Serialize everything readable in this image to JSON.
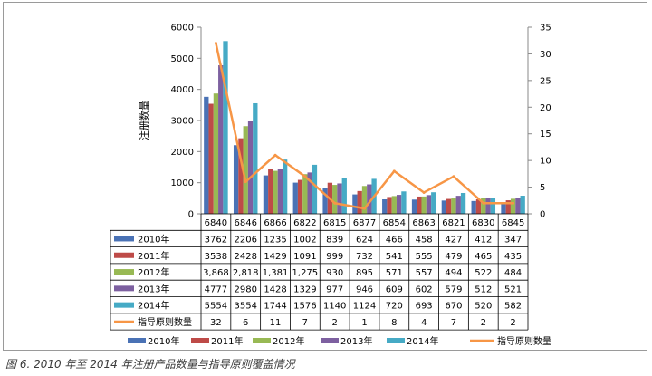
{
  "chart_data": {
    "type": "bar",
    "categories": [
      "6840",
      "6846",
      "6866",
      "6822",
      "6815",
      "6877",
      "6854",
      "6863",
      "6821",
      "6830",
      "6845"
    ],
    "series": [
      {
        "name": "2010年",
        "color": "#4a72b5",
        "values": [
          3762,
          2206,
          1235,
          1002,
          839,
          624,
          466,
          458,
          427,
          412,
          347
        ],
        "labels": [
          "3762",
          "2206",
          "1235",
          "1002",
          "839",
          "624",
          "466",
          "458",
          "427",
          "412",
          "347"
        ]
      },
      {
        "name": "2011年",
        "color": "#be4b48",
        "values": [
          3538,
          2428,
          1429,
          1091,
          999,
          732,
          541,
          555,
          479,
          465,
          435
        ],
        "labels": [
          "3538",
          "2428",
          "1429",
          "1091",
          "999",
          "732",
          "541",
          "555",
          "479",
          "465",
          "435"
        ]
      },
      {
        "name": "2012年",
        "color": "#98b954",
        "values": [
          3868,
          2818,
          1381,
          1275,
          930,
          895,
          571,
          557,
          494,
          522,
          484
        ],
        "labels": [
          "3,868",
          "2,818",
          "1,381",
          "1,275",
          "930",
          "895",
          "571",
          "557",
          "494",
          "522",
          "484"
        ]
      },
      {
        "name": "2013年",
        "color": "#7d60a0",
        "values": [
          4777,
          2980,
          1428,
          1329,
          977,
          946,
          609,
          602,
          579,
          512,
          521
        ],
        "labels": [
          "4777",
          "2980",
          "1428",
          "1329",
          "977",
          "946",
          "609",
          "602",
          "579",
          "512",
          "521"
        ]
      },
      {
        "name": "2014年",
        "color": "#46aac5",
        "values": [
          5554,
          3554,
          1744,
          1576,
          1140,
          1124,
          720,
          693,
          670,
          520,
          582
        ],
        "labels": [
          "5554",
          "3554",
          "1744",
          "1576",
          "1140",
          "1124",
          "720",
          "693",
          "670",
          "520",
          "582"
        ]
      }
    ],
    "line_series": {
      "name": "指导原则数量",
      "color": "#f79646",
      "axis": "right",
      "values": [
        32,
        6,
        11,
        7,
        2,
        1,
        8,
        4,
        7,
        2,
        2
      ],
      "labels": [
        "32",
        "6",
        "11",
        "7",
        "2",
        "1",
        "8",
        "4",
        "7",
        "2",
        "2"
      ]
    },
    "ylabel": "注册数量",
    "ylim": [
      0,
      6000
    ],
    "yticks": [
      "0",
      "1000",
      "2000",
      "3000",
      "4000",
      "5000",
      "6000"
    ],
    "y2lim": [
      0,
      35
    ],
    "y2ticks": [
      "0",
      "5",
      "10",
      "15",
      "20",
      "25",
      "30",
      "35"
    ],
    "grid": false,
    "legend_position": "bottom",
    "data_table": true,
    "axis_color": "#888888"
  },
  "caption": "图 6. 2010 年至 2014 年注册产品数量与指导原则覆盖情况"
}
